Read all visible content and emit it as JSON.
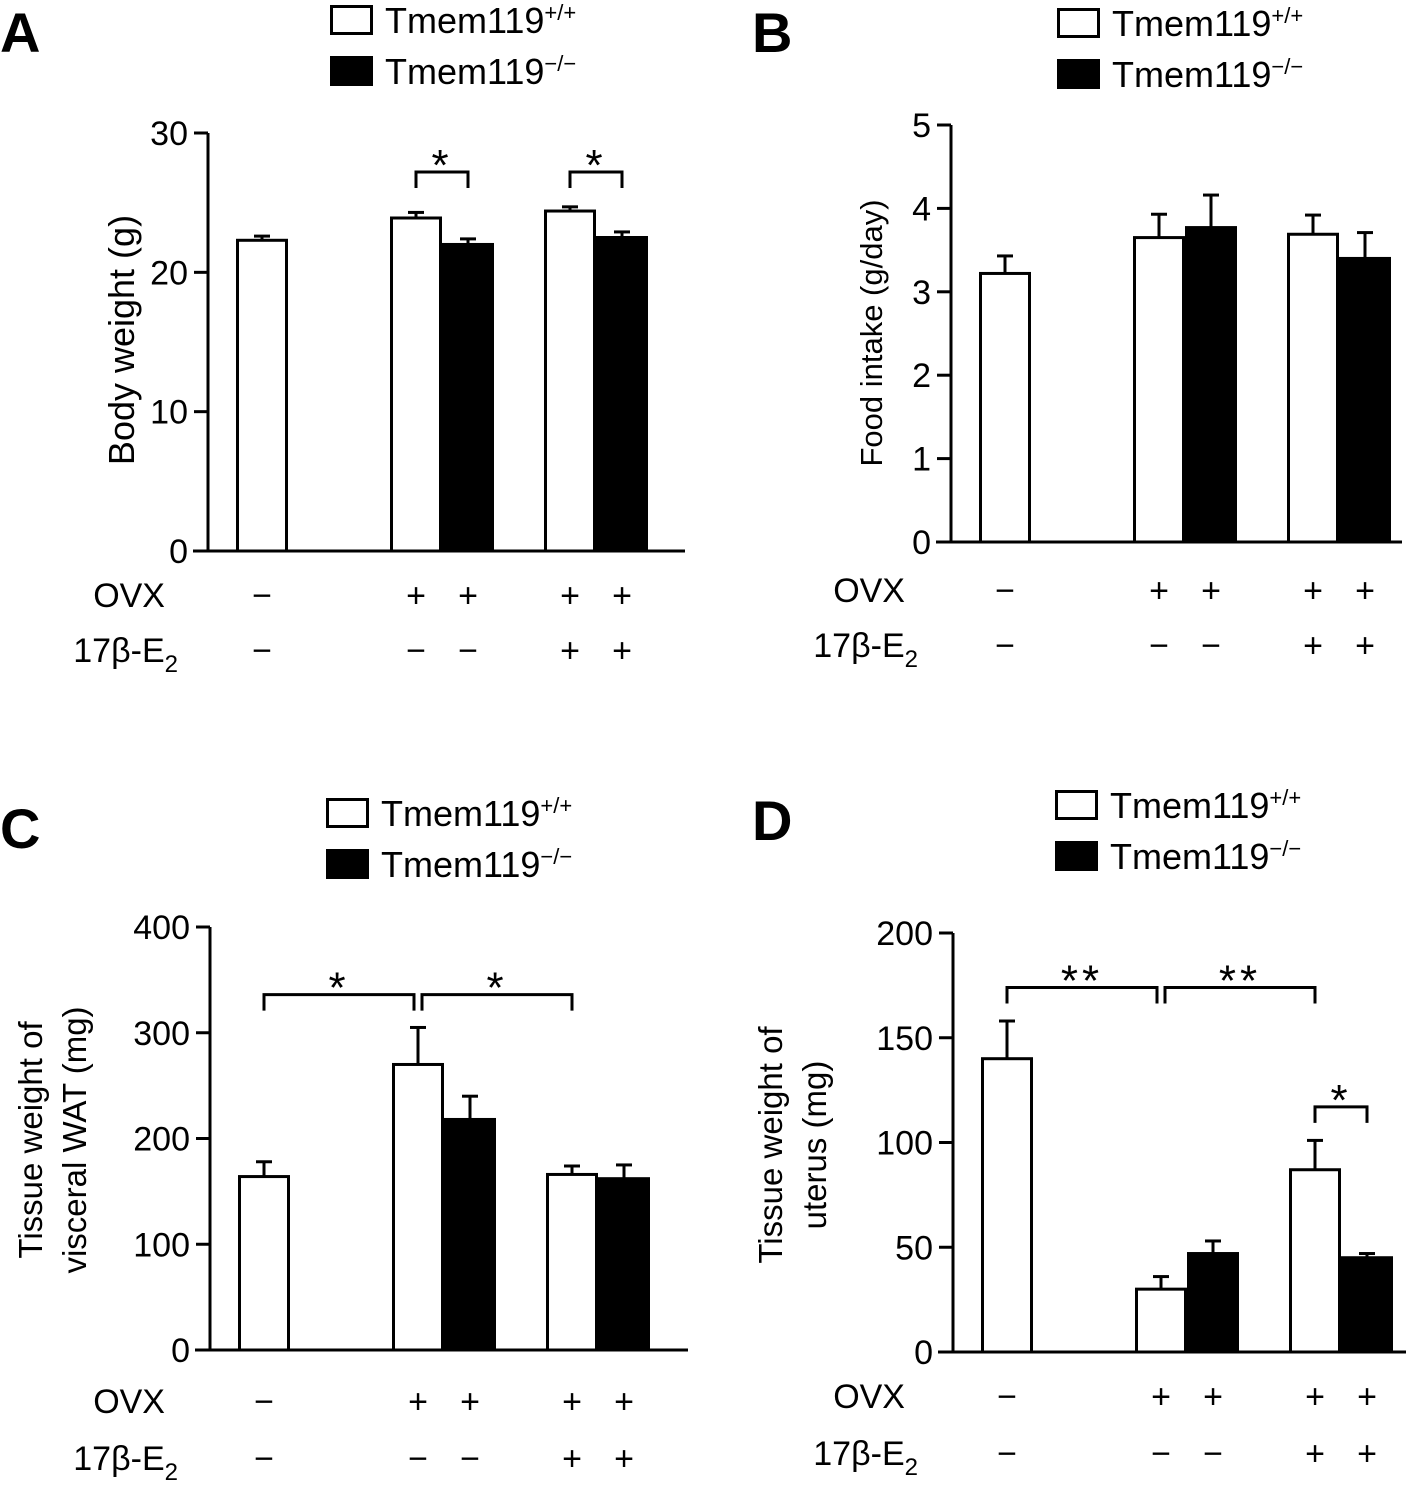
{
  "legend": {
    "wildtype": "Tmem119",
    "wildtype_sup": "+/+",
    "knockout": "Tmem119",
    "knockout_sup": "−/−"
  },
  "row_labels": {
    "ovx": "OVX",
    "e2": "17β-E",
    "e2_sub": "2"
  },
  "colors": {
    "wildtype_fill": "#ffffff",
    "knockout_fill": "#000000",
    "stroke": "#000000"
  },
  "chart_data": [
    {
      "panel": "A",
      "type": "bar",
      "ylabel": [
        "Body weight (g)"
      ],
      "ylim": [
        0,
        30
      ],
      "yticks": [
        0,
        10,
        20,
        30
      ],
      "grid": false,
      "legend_position": "top",
      "bars": [
        {
          "genotype": "Tmem119+/+",
          "ovx": "−",
          "e2": "−",
          "value": 22.3,
          "error": 0.3
        },
        {
          "genotype": "Tmem119+/+",
          "ovx": "+",
          "e2": "−",
          "value": 23.9,
          "error": 0.4
        },
        {
          "genotype": "Tmem119−/−",
          "ovx": "+",
          "e2": "−",
          "value": 22.0,
          "error": 0.4
        },
        {
          "genotype": "Tmem119+/+",
          "ovx": "+",
          "e2": "+",
          "value": 24.4,
          "error": 0.3
        },
        {
          "genotype": "Tmem119−/−",
          "ovx": "+",
          "e2": "+",
          "value": 22.5,
          "error": 0.4
        }
      ],
      "significance": [
        {
          "from": 1,
          "to": 2,
          "y": 27.2,
          "label": "*"
        },
        {
          "from": 3,
          "to": 4,
          "y": 27.2,
          "label": "*"
        }
      ]
    },
    {
      "panel": "B",
      "type": "bar",
      "ylabel": [
        "Food intake (g/day)"
      ],
      "ylim": [
        0,
        5
      ],
      "yticks": [
        0,
        1,
        2,
        3,
        4,
        5
      ],
      "grid": false,
      "legend_position": "top",
      "bars": [
        {
          "genotype": "Tmem119+/+",
          "ovx": "−",
          "e2": "−",
          "value": 3.22,
          "error": 0.21
        },
        {
          "genotype": "Tmem119+/+",
          "ovx": "+",
          "e2": "−",
          "value": 3.65,
          "error": 0.28
        },
        {
          "genotype": "Tmem119−/−",
          "ovx": "+",
          "e2": "−",
          "value": 3.77,
          "error": 0.39
        },
        {
          "genotype": "Tmem119+/+",
          "ovx": "+",
          "e2": "+",
          "value": 3.69,
          "error": 0.23
        },
        {
          "genotype": "Tmem119−/−",
          "ovx": "+",
          "e2": "+",
          "value": 3.4,
          "error": 0.31
        }
      ],
      "significance": []
    },
    {
      "panel": "C",
      "type": "bar",
      "ylabel": [
        "Tissue weight of",
        "visceral WAT (mg)"
      ],
      "ylim": [
        0,
        400
      ],
      "yticks": [
        0,
        100,
        200,
        300,
        400
      ],
      "grid": false,
      "legend_position": "top",
      "bars": [
        {
          "genotype": "Tmem119+/+",
          "ovx": "−",
          "e2": "−",
          "value": 164,
          "error": 14
        },
        {
          "genotype": "Tmem119+/+",
          "ovx": "+",
          "e2": "−",
          "value": 270,
          "error": 35
        },
        {
          "genotype": "Tmem119−/−",
          "ovx": "+",
          "e2": "−",
          "value": 218,
          "error": 22
        },
        {
          "genotype": "Tmem119+/+",
          "ovx": "+",
          "e2": "+",
          "value": 166,
          "error": 8
        },
        {
          "genotype": "Tmem119−/−",
          "ovx": "+",
          "e2": "+",
          "value": 162,
          "error": 13
        }
      ],
      "significance": [
        {
          "from": 0,
          "to": 1,
          "y": 336,
          "label": "*"
        },
        {
          "from": 1,
          "to": 3,
          "y": 336,
          "label": "*"
        }
      ]
    },
    {
      "panel": "D",
      "type": "bar",
      "ylabel": [
        "Tissue weight of",
        "uterus (mg)"
      ],
      "ylim": [
        0,
        200
      ],
      "yticks": [
        0,
        50,
        100,
        150,
        200
      ],
      "grid": false,
      "legend_position": "top",
      "bars": [
        {
          "genotype": "Tmem119+/+",
          "ovx": "−",
          "e2": "−",
          "value": 140,
          "error": 18
        },
        {
          "genotype": "Tmem119+/+",
          "ovx": "+",
          "e2": "−",
          "value": 30,
          "error": 6
        },
        {
          "genotype": "Tmem119−/−",
          "ovx": "+",
          "e2": "−",
          "value": 47,
          "error": 6
        },
        {
          "genotype": "Tmem119+/+",
          "ovx": "+",
          "e2": "+",
          "value": 87,
          "error": 14
        },
        {
          "genotype": "Tmem119−/−",
          "ovx": "+",
          "e2": "+",
          "value": 45,
          "error": 2
        }
      ],
      "significance": [
        {
          "from": 0,
          "to": 1,
          "y": 174,
          "label": "**"
        },
        {
          "from": 1,
          "to": 3,
          "y": 174,
          "label": "**"
        },
        {
          "from": 3,
          "to": 4,
          "y": 117,
          "label": "*"
        }
      ]
    }
  ]
}
